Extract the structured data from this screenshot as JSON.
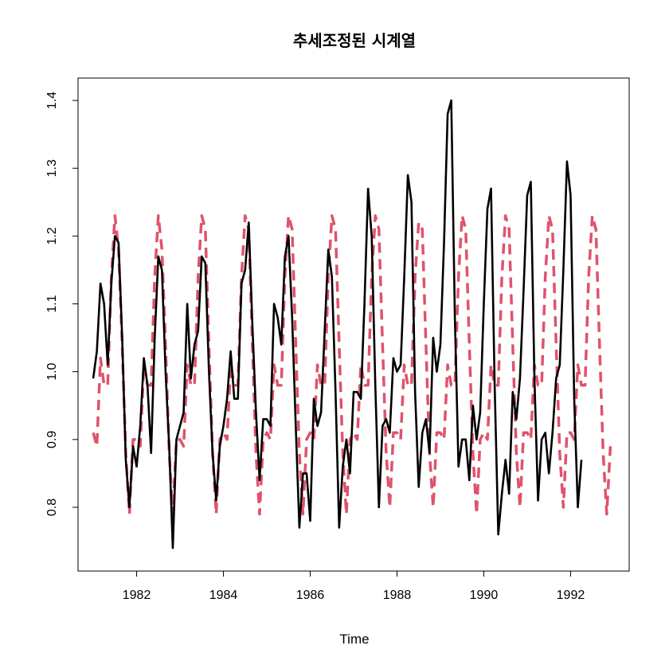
{
  "chart_data": {
    "type": "line",
    "title": "추세조정된 시계열",
    "xlabel": "Time",
    "ylabel": "",
    "xlim": [
      1980.65,
      1993.35
    ],
    "ylim": [
      0.706,
      1.433
    ],
    "x_ticks": [
      1982,
      1984,
      1986,
      1988,
      1990,
      1992
    ],
    "x_tick_labels": [
      "1982",
      "1984",
      "1986",
      "1988",
      "1990",
      "1992"
    ],
    "y_ticks": [
      0.8,
      0.9,
      1.0,
      1.1,
      1.2,
      1.3,
      1.4
    ],
    "y_tick_labels": [
      "0.8",
      "0.9",
      "1.0",
      "1.1",
      "1.2",
      "1.3",
      "1.4"
    ],
    "grid": false,
    "legend": "none",
    "x_start": 1981.0,
    "frequency": 12,
    "series": [
      {
        "color": "#000000",
        "style": "solid",
        "values": [
          0.99,
          1.03,
          1.13,
          1.1,
          1.01,
          1.13,
          1.2,
          1.19,
          1.05,
          0.87,
          0.8,
          0.89,
          0.86,
          0.92,
          1.02,
          0.98,
          0.88,
          1.05,
          1.17,
          1.15,
          1.0,
          0.89,
          0.74,
          0.9,
          0.92,
          0.94,
          1.1,
          0.99,
          1.04,
          1.06,
          1.17,
          1.16,
          1.0,
          0.88,
          0.81,
          0.89,
          0.92,
          0.96,
          1.03,
          0.96,
          0.96,
          1.13,
          1.15,
          1.22,
          1.07,
          0.94,
          0.84,
          0.93,
          0.93,
          0.92,
          1.1,
          1.08,
          1.04,
          1.17,
          1.2,
          1.08,
          0.92,
          0.77,
          0.85,
          0.85,
          0.78,
          0.96,
          0.92,
          0.94,
          1.06,
          1.18,
          1.14,
          0.97,
          0.77,
          0.86,
          0.9,
          0.85,
          0.97,
          0.97,
          0.96,
          1.1,
          1.27,
          1.2,
          0.98,
          0.8,
          0.92,
          0.93,
          0.91,
          1.02,
          1.0,
          1.01,
          1.14,
          1.29,
          1.25,
          0.97,
          0.83,
          0.91,
          0.93,
          0.88,
          1.05,
          1.0,
          1.04,
          1.19,
          1.38,
          1.4,
          1.08,
          0.86,
          0.9,
          0.9,
          0.84,
          0.95,
          0.9,
          0.94,
          1.1,
          1.24,
          1.27,
          0.98,
          0.76,
          0.82,
          0.87,
          0.82,
          0.97,
          0.93,
          0.99,
          1.12,
          1.26,
          1.28,
          0.99,
          0.81,
          0.9,
          0.91,
          0.85,
          0.91,
          0.99,
          1.01,
          1.15,
          1.31,
          1.26,
          0.96,
          0.8,
          0.87
        ]
      },
      {
        "color": "#DF536B",
        "style": "dashed",
        "values": [
          0.91,
          0.89,
          1.02,
          0.98,
          0.98,
          1.14,
          1.23,
          1.18,
          1.04,
          0.88,
          0.79,
          0.9,
          0.9,
          0.89,
          1.01,
          0.98,
          0.98,
          1.14,
          1.23,
          1.18,
          1.04,
          0.88,
          0.79,
          0.9,
          0.9,
          0.89,
          1.01,
          0.98,
          0.98,
          1.14,
          1.23,
          1.21,
          1.04,
          0.88,
          0.79,
          0.9,
          0.91,
          0.9,
          1.01,
          0.98,
          0.98,
          1.14,
          1.23,
          1.21,
          1.04,
          0.88,
          0.79,
          0.9,
          0.91,
          0.9,
          1.01,
          0.98,
          0.98,
          1.14,
          1.23,
          1.21,
          1.04,
          0.88,
          0.79,
          0.9,
          0.91,
          0.9,
          1.01,
          0.98,
          0.98,
          1.14,
          1.23,
          1.21,
          1.04,
          0.88,
          0.79,
          0.9,
          0.91,
          0.9,
          1.01,
          0.98,
          0.98,
          1.14,
          1.23,
          1.21,
          1.04,
          0.88,
          0.8,
          0.91,
          0.91,
          0.9,
          1.01,
          0.98,
          0.98,
          1.14,
          1.22,
          1.21,
          1.04,
          0.88,
          0.8,
          0.91,
          0.91,
          0.9,
          1.01,
          0.98,
          0.98,
          1.14,
          1.23,
          1.21,
          1.04,
          0.88,
          0.79,
          0.9,
          0.91,
          0.9,
          1.01,
          0.98,
          0.98,
          1.14,
          1.23,
          1.21,
          1.04,
          0.88,
          0.8,
          0.91,
          0.91,
          0.9,
          1.01,
          0.98,
          0.98,
          1.14,
          1.23,
          1.21,
          1.04,
          0.88,
          0.8,
          0.91,
          0.91,
          0.9,
          1.01,
          0.98,
          0.98,
          1.14,
          1.23,
          1.21,
          1.04,
          0.88,
          0.79,
          0.89
        ]
      }
    ]
  }
}
